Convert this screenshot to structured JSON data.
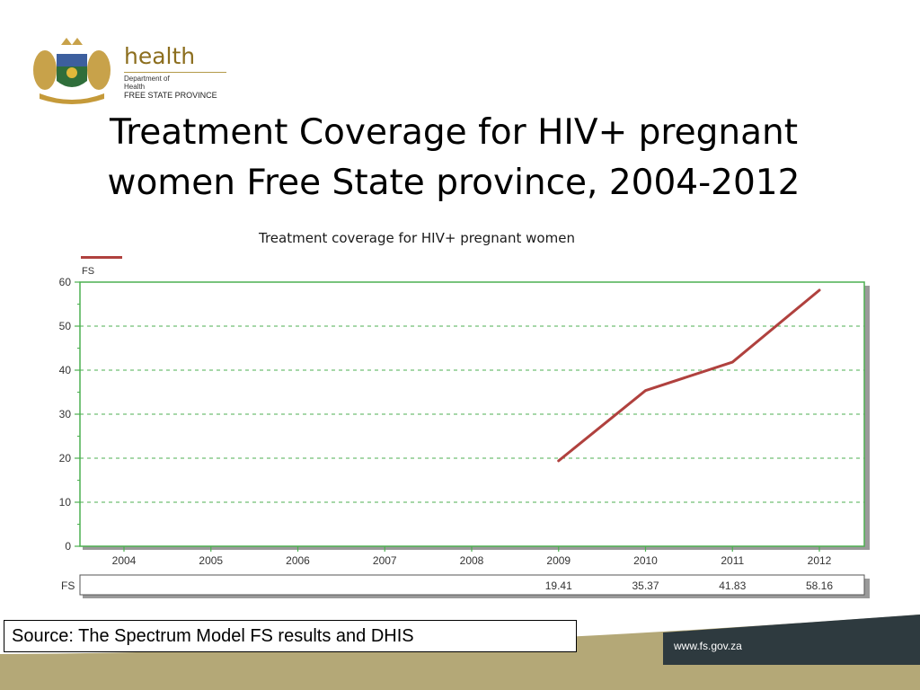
{
  "logo": {
    "name": "health",
    "department": [
      "Department of",
      "Health"
    ],
    "province": "FREE STATE PROVINCE"
  },
  "slide": {
    "title_line1": "Treatment Coverage for HIV+ pregnant",
    "title_line2": "women  Free State province, 2004-2012",
    "source": "Source: The  Spectrum Model FS results and DHIS",
    "url": "www.fs.gov.za"
  },
  "colors": {
    "series": "#b0413e",
    "grid": "#4caf50",
    "footer_band": "#b4a877",
    "footer_dark": "#2e3a3f"
  },
  "chart_data": {
    "type": "line",
    "title": "Treatment coverage for HIV+ pregnant women",
    "x": [
      "2004",
      "2005",
      "2006",
      "2007",
      "2008",
      "2009",
      "2010",
      "2011",
      "2012"
    ],
    "series": [
      {
        "name": "FS",
        "values": [
          null,
          null,
          null,
          null,
          null,
          19.41,
          35.37,
          41.83,
          58.16
        ]
      }
    ],
    "table_labels": [
      "",
      "",
      "",
      "",
      "",
      "19.41",
      "35.37",
      "41.83",
      "58.16"
    ],
    "ylim": [
      0,
      60
    ],
    "yticks": [
      0,
      10,
      20,
      30,
      40,
      50,
      60
    ],
    "grid": true,
    "legend": "top-left"
  }
}
